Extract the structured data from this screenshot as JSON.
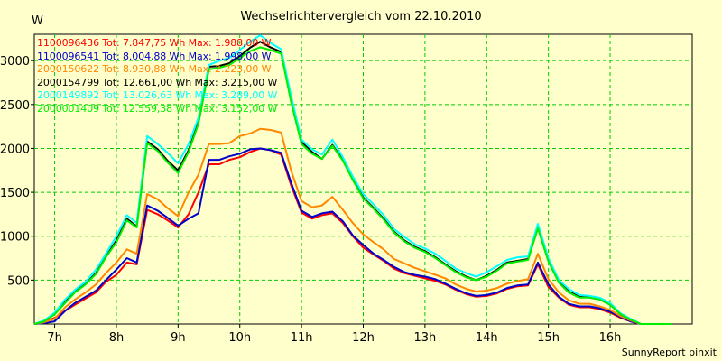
{
  "title": "Wechselrichtervergleich vom 22.10.2010",
  "footer": "SunnyReport pinxit",
  "colors": {
    "background": "#ffffcc",
    "grid": "#00cc00"
  },
  "chart_data": {
    "type": "line",
    "title": "Wechselrichtervergleich vom 22.10.2010",
    "ylabel": "W",
    "xlabel": "",
    "xlim": [
      6.67,
      17.33
    ],
    "ylim": [
      0,
      3300
    ],
    "grid": true,
    "legend_position": "top-left",
    "x_ticks": [
      7,
      8,
      9,
      10,
      11,
      12,
      13,
      14,
      15,
      16
    ],
    "x_tick_labels": [
      "7h",
      "8h",
      "9h",
      "10h",
      "11h",
      "12h",
      "13h",
      "14h",
      "15h",
      "16h"
    ],
    "y_ticks": [
      500,
      1000,
      1500,
      2000,
      2500,
      3000
    ],
    "y_tick_labels": [
      "500",
      "1000",
      "1500",
      "2000",
      "2500",
      "3000"
    ],
    "x": [
      6.67,
      6.83,
      7.0,
      7.17,
      7.33,
      7.5,
      7.67,
      7.83,
      8.0,
      8.17,
      8.33,
      8.5,
      8.67,
      8.83,
      9.0,
      9.17,
      9.33,
      9.5,
      9.67,
      9.83,
      10.0,
      10.17,
      10.33,
      10.5,
      10.67,
      10.83,
      11.0,
      11.17,
      11.33,
      11.5,
      11.67,
      11.83,
      12.0,
      12.17,
      12.33,
      12.5,
      12.67,
      12.83,
      13.0,
      13.17,
      13.33,
      13.5,
      13.67,
      13.83,
      14.0,
      14.17,
      14.33,
      14.5,
      14.67,
      14.83,
      15.0,
      15.17,
      15.33,
      15.5,
      15.67,
      15.83,
      16.0,
      16.17,
      16.33,
      16.5,
      16.67,
      16.83,
      17.0
    ],
    "series": [
      {
        "name": "1100096436",
        "legend": "1100096436 Tot: 7.847,75 Wh Max: 1.988,00 W",
        "color": "#ff0000",
        "values": [
          0,
          20,
          70,
          150,
          220,
          290,
          360,
          480,
          560,
          700,
          680,
          1300,
          1250,
          1180,
          1100,
          1250,
          1500,
          1820,
          1820,
          1870,
          1900,
          1960,
          2000,
          1980,
          1930,
          1580,
          1270,
          1200,
          1240,
          1260,
          1150,
          1000,
          870,
          790,
          720,
          630,
          580,
          550,
          520,
          490,
          450,
          390,
          340,
          310,
          320,
          350,
          400,
          430,
          440,
          680,
          420,
          300,
          220,
          190,
          190,
          170,
          130,
          70,
          30,
          0,
          0,
          0,
          0
        ]
      },
      {
        "name": "1100096541",
        "legend": "1100096541 Tot: 8.004,88 Wh Max: 1.998,00 W",
        "color": "#0000cc",
        "values": [
          0,
          10,
          30,
          150,
          240,
          310,
          380,
          500,
          620,
          750,
          700,
          1350,
          1290,
          1210,
          1120,
          1200,
          1260,
          1870,
          1870,
          1910,
          1940,
          1990,
          2000,
          1980,
          1950,
          1610,
          1290,
          1220,
          1260,
          1280,
          1170,
          1010,
          900,
          800,
          730,
          650,
          590,
          560,
          540,
          510,
          460,
          400,
          350,
          320,
          330,
          360,
          410,
          440,
          450,
          700,
          450,
          310,
          230,
          200,
          200,
          180,
          140,
          80,
          30,
          0,
          0,
          0,
          0
        ]
      },
      {
        "name": "2000150622",
        "legend": "2000150622 Tot: 8.930,88 Wh Max: 2.223,00 W",
        "color": "#ff8800",
        "values": [
          0,
          20,
          60,
          190,
          280,
          360,
          450,
          580,
          700,
          850,
          800,
          1480,
          1420,
          1320,
          1230,
          1500,
          1700,
          2050,
          2050,
          2060,
          2140,
          2170,
          2223,
          2210,
          2180,
          1750,
          1400,
          1330,
          1350,
          1450,
          1300,
          1150,
          1020,
          930,
          850,
          740,
          690,
          640,
          600,
          560,
          520,
          450,
          400,
          370,
          380,
          410,
          460,
          490,
          510,
          800,
          510,
          360,
          270,
          230,
          230,
          200,
          160,
          90,
          40,
          0,
          0,
          0,
          0
        ]
      },
      {
        "name": "2000154799",
        "legend": "2000154799 Tot: 12.661,00 Wh Max: 3.215,00 W",
        "color": "#000000",
        "values": [
          0,
          30,
          120,
          250,
          370,
          460,
          580,
          770,
          950,
          1200,
          1110,
          2080,
          1990,
          1860,
          1750,
          1980,
          2300,
          2930,
          2940,
          2970,
          3050,
          3150,
          3215,
          3150,
          3100,
          2550,
          2070,
          1960,
          1880,
          2040,
          1870,
          1650,
          1440,
          1320,
          1200,
          1050,
          950,
          880,
          830,
          760,
          680,
          600,
          540,
          500,
          550,
          620,
          700,
          720,
          740,
          1100,
          720,
          480,
          370,
          310,
          300,
          280,
          220,
          110,
          50,
          0,
          0,
          0,
          0
        ]
      },
      {
        "name": "2000149892",
        "legend": "2000149892 Tot: 13.026,63 Wh Max: 3.289,00 W",
        "color": "#00ffff",
        "values": [
          0,
          40,
          130,
          280,
          390,
          480,
          620,
          800,
          1000,
          1240,
          1150,
          2140,
          2050,
          1950,
          1830,
          2050,
          2350,
          2950,
          3000,
          3030,
          3120,
          3220,
          3289,
          3200,
          3130,
          2600,
          2100,
          1990,
          1930,
          2100,
          1900,
          1680,
          1480,
          1360,
          1240,
          1080,
          990,
          910,
          860,
          800,
          720,
          630,
          580,
          540,
          590,
          660,
          730,
          760,
          770,
          1140,
          750,
          500,
          400,
          330,
          320,
          300,
          240,
          120,
          60,
          0,
          0,
          0,
          0
        ]
      },
      {
        "name": "2000001409",
        "legend": "2000001409 Tot: 12.559,38 Wh Max: 3.152,00 W",
        "color": "#00ee00",
        "values": [
          0,
          30,
          110,
          240,
          360,
          450,
          570,
          760,
          930,
          1180,
          1100,
          2060,
          1970,
          1840,
          1720,
          1960,
          2280,
          2900,
          2920,
          2950,
          3030,
          3110,
          3152,
          3120,
          3080,
          2530,
          2050,
          1940,
          1880,
          2030,
          1860,
          1640,
          1430,
          1310,
          1190,
          1040,
          940,
          870,
          820,
          750,
          670,
          590,
          530,
          500,
          540,
          610,
          690,
          710,
          730,
          1090,
          710,
          470,
          360,
          300,
          300,
          280,
          220,
          110,
          50,
          0,
          0,
          0,
          0
        ]
      }
    ]
  }
}
